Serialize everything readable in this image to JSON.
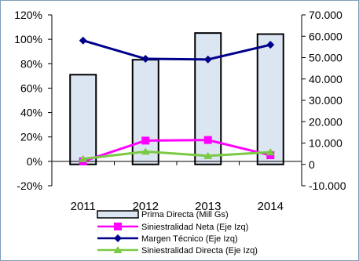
{
  "chart_data": {
    "type": "bar",
    "categories": [
      "2011",
      "2012",
      "2013",
      "2014"
    ],
    "left_axis": {
      "ticks": [
        "120%",
        "100%",
        "80%",
        "60%",
        "40%",
        "20%",
        "0%",
        "-20%"
      ],
      "range": [
        -20,
        120
      ]
    },
    "right_axis": {
      "ticks": [
        "70.000",
        "60.000",
        "50.000",
        "40.000",
        "30.000",
        "20.000",
        "10.000",
        "0",
        "-10.000"
      ],
      "range": [
        -10000,
        70000
      ]
    },
    "series": [
      {
        "name": "Prima Directa (Mill Gs)",
        "kind": "bar",
        "axis": "right",
        "color": "#dce6f2",
        "values": [
          42000,
          49000,
          61500,
          61000
        ]
      },
      {
        "name": "Siniestralidad Neta (Eje Izq)",
        "kind": "line",
        "axis": "left",
        "marker": "square",
        "color": "#ff00ff",
        "values": [
          0,
          17,
          17.5,
          5
        ]
      },
      {
        "name": "Margen Técnico (Eje Izq)",
        "kind": "line",
        "axis": "left",
        "marker": "diamond",
        "color": "#00008b",
        "values": [
          99,
          84,
          83.5,
          95.5
        ]
      },
      {
        "name": "Siniestralidad Directa (Eje Izq)",
        "kind": "line",
        "axis": "left",
        "marker": "triangle",
        "color": "#7ac943",
        "values": [
          2,
          8,
          4.5,
          7.5
        ]
      }
    ],
    "legend_position": "bottom",
    "grid": false
  }
}
